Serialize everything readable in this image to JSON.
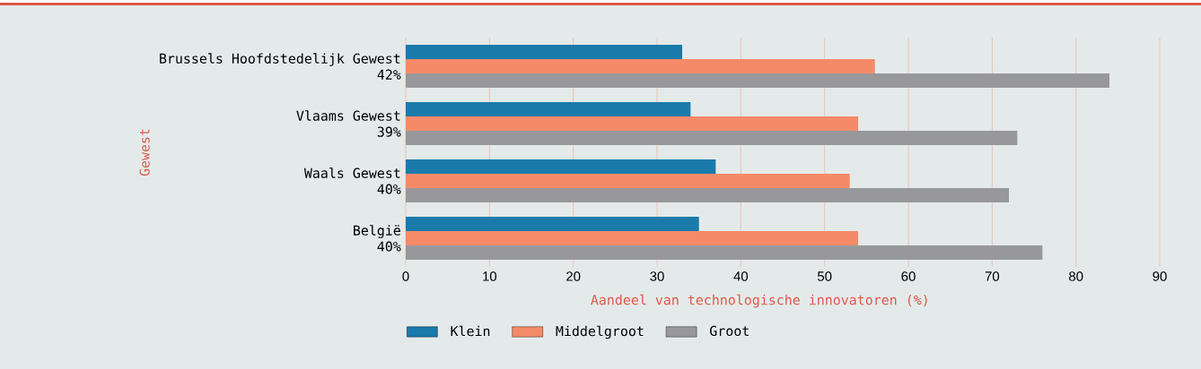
{
  "chart_data": {
    "type": "bar",
    "orientation": "horizontal",
    "xlabel": "Aandeel van technologische innovatoren (%)",
    "ylabel": "Gewest",
    "categories": [
      "Brussels Hoofdstedelijk Gewest",
      "Vlaams Gewest",
      "Waals Gewest",
      "België"
    ],
    "annotations": [
      "42%",
      "39%",
      "40%",
      "40%"
    ],
    "series": [
      {
        "name": "Klein",
        "color": "#1a7aab",
        "values": [
          33,
          34,
          37,
          35
        ]
      },
      {
        "name": "Middelgroot",
        "color": "#f58a68",
        "values": [
          56,
          54,
          53,
          54
        ]
      },
      {
        "name": "Groot",
        "color": "#98989c",
        "values": [
          84,
          73,
          72,
          76
        ]
      }
    ],
    "xlim": [
      0,
      90
    ],
    "xticks": [
      0,
      10,
      20,
      30,
      40,
      50,
      60,
      70,
      80,
      90
    ],
    "grid": "x",
    "legend": "bottom"
  }
}
